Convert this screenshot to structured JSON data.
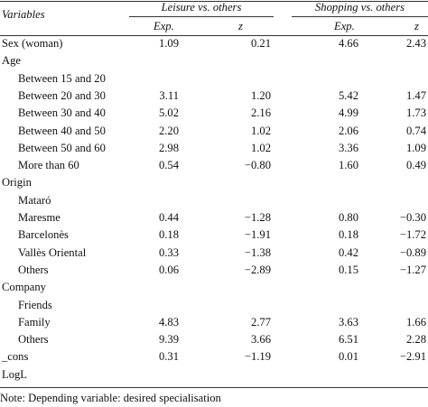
{
  "header": {
    "variables": "Variables",
    "group1": "Leisure vs. others",
    "group2": "Shopping vs. others",
    "exp": "Exp.",
    "z": "z"
  },
  "rows": [
    {
      "label": "Sex (woman)",
      "indent": false,
      "v": [
        "1.09",
        "0.21",
        "4.66",
        "2.43"
      ]
    },
    {
      "label": "Age",
      "indent": false,
      "v": [
        "",
        "",
        "",
        ""
      ]
    },
    {
      "label": "Between 15 and 20",
      "indent": true,
      "v": [
        "",
        "",
        "",
        ""
      ]
    },
    {
      "label": "Between 20 and 30",
      "indent": true,
      "v": [
        "3.11",
        "1.20",
        "5.42",
        "1.47"
      ]
    },
    {
      "label": "Between 30 and 40",
      "indent": true,
      "v": [
        "5.02",
        "2.16",
        "4.99",
        "1.73"
      ]
    },
    {
      "label": "Between 40 and 50",
      "indent": true,
      "v": [
        "2.20",
        "1.02",
        "2.06",
        "0.74"
      ]
    },
    {
      "label": "Between 50 and 60",
      "indent": true,
      "v": [
        "2.98",
        "1.02",
        "3.36",
        "1.09"
      ]
    },
    {
      "label": "More than 60",
      "indent": true,
      "v": [
        "0.54",
        "−0.80",
        "1.60",
        "0.49"
      ]
    },
    {
      "label": "Origin",
      "indent": false,
      "v": [
        "",
        "",
        "",
        ""
      ]
    },
    {
      "label": "Mataró",
      "indent": true,
      "v": [
        "",
        "",
        "",
        ""
      ]
    },
    {
      "label": "Maresme",
      "indent": true,
      "v": [
        "0.44",
        "−1.28",
        "0.80",
        "−0.30"
      ]
    },
    {
      "label": "Barcelonès",
      "indent": true,
      "v": [
        "0.18",
        "−1.91",
        "0.18",
        "−1.72"
      ]
    },
    {
      "label": "Vallès Oriental",
      "indent": true,
      "v": [
        "0.33",
        "−1.38",
        "0.42",
        "−0.89"
      ]
    },
    {
      "label": "Others",
      "indent": true,
      "v": [
        "0.06",
        "−2.89",
        "0.15",
        "−1.27"
      ]
    },
    {
      "label": "Company",
      "indent": false,
      "v": [
        "",
        "",
        "",
        ""
      ]
    },
    {
      "label": "Friends",
      "indent": true,
      "v": [
        "",
        "",
        "",
        ""
      ]
    },
    {
      "label": "Family",
      "indent": true,
      "v": [
        "4.83",
        "2.77",
        "3.63",
        "1.66"
      ]
    },
    {
      "label": "Others",
      "indent": true,
      "v": [
        "9.39",
        "3.66",
        "6.51",
        "2.28"
      ]
    },
    {
      "label": "_cons",
      "indent": false,
      "v": [
        "0.31",
        "−1.19",
        "0.01",
        "−2.91"
      ]
    },
    {
      "label": "LogL",
      "indent": false,
      "v": [
        "",
        "",
        "",
        ""
      ]
    }
  ],
  "note": "Note: Depending variable: desired specialisation"
}
